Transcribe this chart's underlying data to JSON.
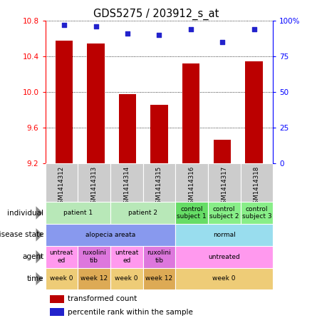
{
  "title": "GDS5275 / 203912_s_at",
  "samples": [
    "GSM1414312",
    "GSM1414313",
    "GSM1414314",
    "GSM1414315",
    "GSM1414316",
    "GSM1414317",
    "GSM1414318"
  ],
  "transformed_counts": [
    10.58,
    10.55,
    9.98,
    9.86,
    10.32,
    9.46,
    10.35
  ],
  "percentile_ranks": [
    97,
    96,
    91,
    90,
    94,
    85,
    94
  ],
  "ylim_left": [
    9.2,
    10.8
  ],
  "yticks_left": [
    9.2,
    9.6,
    10.0,
    10.4,
    10.8
  ],
  "yticks_right": [
    0,
    25,
    50,
    75,
    100
  ],
  "bar_color": "#bb0000",
  "dot_color": "#2222cc",
  "individual_spans": [
    [
      0,
      2,
      "patient 1"
    ],
    [
      2,
      4,
      "patient 2"
    ],
    [
      4,
      5,
      "control\nsubject 1"
    ],
    [
      5,
      6,
      "control\nsubject 2"
    ],
    [
      6,
      7,
      "control\nsubject 3"
    ]
  ],
  "individual_colors_light": [
    "#c8f0c8",
    "#c8f0c8",
    "#88ee88",
    "#88ee88",
    "#88ee88"
  ],
  "disease_state_spans": [
    [
      0,
      4,
      "alopecia areata"
    ],
    [
      4,
      7,
      "normal"
    ]
  ],
  "disease_state_colors": [
    "#8888ee",
    "#aaddff"
  ],
  "agent_spans": [
    [
      0,
      1,
      "untreat\ned"
    ],
    [
      1,
      2,
      "ruxolini\ntib"
    ],
    [
      2,
      3,
      "untreat\ned"
    ],
    [
      3,
      4,
      "ruxolini\ntib"
    ],
    [
      4,
      7,
      "untreated"
    ]
  ],
  "agent_colors": [
    "#ffaaee",
    "#ffaaee",
    "#ffaaee",
    "#ffaaee",
    "#ffaaee"
  ],
  "agent_colors2": [
    "#ffaaee",
    "#dd88ee",
    "#ffaaee",
    "#dd88ee",
    "#ffaaee"
  ],
  "time_spans": [
    [
      0,
      1,
      "week 0"
    ],
    [
      1,
      2,
      "week 12"
    ],
    [
      2,
      3,
      "week 0"
    ],
    [
      3,
      4,
      "week 12"
    ],
    [
      4,
      7,
      "week 0"
    ]
  ],
  "time_colors": [
    "#f0c87a",
    "#f0c87a",
    "#f0c87a",
    "#f0c87a",
    "#f0c87a"
  ],
  "time_colors2": [
    "#f0c87a",
    "#e8b85a",
    "#f0c87a",
    "#e8b85a",
    "#f0c87a"
  ],
  "row_labels": [
    "individual",
    "disease state",
    "agent",
    "time"
  ],
  "legend_items": [
    [
      "transformed count",
      "#bb0000"
    ],
    [
      "percentile rank within the sample",
      "#2222cc"
    ]
  ],
  "sample_bg_color": "#cccccc",
  "n_samples": 7
}
